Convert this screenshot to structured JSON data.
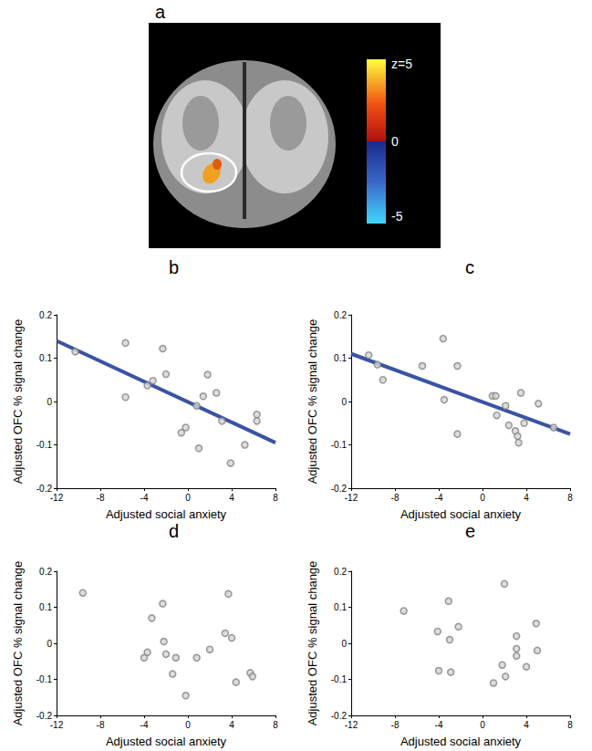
{
  "image_panel": {
    "title": "a",
    "colorbar": {
      "range": [
        -5,
        5
      ],
      "ticks": [
        {
          "value": 5,
          "label": "z=5"
        },
        0,
        -5
      ]
    }
  },
  "chart_data": [
    {
      "type": "scatter",
      "title": "b",
      "x_label": "Adjusted social anxiety",
      "y_label": "Adjusted OFC % signal change",
      "xlim": [
        -12,
        8
      ],
      "xticks": [
        -12,
        -8,
        -4,
        0,
        4,
        8
      ],
      "ylim": [
        -0.2,
        0.2
      ],
      "yticks": [
        -0.2,
        -0.1,
        0,
        0.1,
        0.2
      ],
      "grid": false,
      "series": [
        {
          "type": "scatter",
          "color": "#808080",
          "marker": "circle",
          "x": [
            -10.3,
            -5.7,
            -5.7,
            -3.7,
            -3.2,
            -2.3,
            -2.0,
            -0.6,
            -0.2,
            0.8,
            1.0,
            1.4,
            1.8,
            2.6,
            3.1,
            3.9,
            5.2,
            6.3,
            6.3
          ],
          "values": [
            0.115,
            0.135,
            0.01,
            0.037,
            0.048,
            0.122,
            0.063,
            -0.072,
            -0.06,
            -0.01,
            -0.108,
            0.012,
            0.062,
            0.02,
            -0.045,
            -0.142,
            -0.1,
            -0.03,
            -0.045
          ]
        },
        {
          "type": "line",
          "color": "#3a53a4",
          "x": [
            -12,
            8
          ],
          "values": [
            0.14,
            -0.095
          ]
        }
      ]
    },
    {
      "type": "scatter",
      "title": "c",
      "x_label": "Adjusted social anxiety",
      "y_label": "Adjusted OFC % signal change",
      "xlim": [
        -12,
        8
      ],
      "xticks": [
        -12,
        -8,
        -4,
        0,
        4,
        8
      ],
      "ylim": [
        -0.2,
        0.2
      ],
      "yticks": [
        -0.2,
        -0.1,
        0,
        0.1,
        0.2
      ],
      "grid": false,
      "series": [
        {
          "type": "scatter",
          "color": "#808080",
          "marker": "circle",
          "x": [
            -10.4,
            -9.6,
            -9.1,
            -5.5,
            -3.6,
            -3.5,
            -2.3,
            -2.3,
            0.9,
            1.2,
            1.3,
            2.1,
            2.4,
            3.0,
            3.2,
            3.3,
            3.5,
            3.8,
            5.1,
            6.5
          ],
          "values": [
            0.107,
            0.085,
            0.05,
            0.082,
            0.145,
            0.004,
            0.082,
            -0.075,
            0.013,
            0.013,
            -0.032,
            -0.01,
            -0.055,
            -0.068,
            -0.08,
            -0.095,
            0.02,
            -0.05,
            -0.005,
            -0.06
          ]
        },
        {
          "type": "line",
          "color": "#3a53a4",
          "x": [
            -12,
            8
          ],
          "values": [
            0.11,
            -0.075
          ]
        }
      ]
    },
    {
      "type": "scatter",
      "title": "d",
      "x_label": "Adjusted social anxiety",
      "y_label": "Adjusted OFC % signal change",
      "xlim": [
        -12,
        8
      ],
      "xticks": [
        -12,
        -8,
        -4,
        0,
        4,
        8
      ],
      "ylim": [
        -0.2,
        0.2
      ],
      "yticks": [
        -0.2,
        -0.1,
        0,
        0.1,
        0.2
      ],
      "grid": false,
      "series": [
        {
          "type": "scatter",
          "color": "#808080",
          "marker": "circle",
          "x": [
            -9.6,
            -4.0,
            -3.7,
            -3.3,
            -2.3,
            -2.2,
            -2.0,
            -1.4,
            -1.1,
            -0.2,
            0.8,
            2.0,
            3.4,
            3.7,
            4.0,
            4.4,
            5.7,
            5.9
          ],
          "values": [
            0.14,
            -0.04,
            -0.025,
            0.07,
            0.11,
            0.005,
            -0.03,
            -0.085,
            -0.04,
            -0.145,
            -0.04,
            -0.017,
            0.028,
            0.137,
            0.015,
            -0.108,
            -0.082,
            -0.092
          ]
        }
      ]
    },
    {
      "type": "scatter",
      "title": "e",
      "x_label": "Adjusted social anxiety",
      "y_label": "Adjusted OFC % signal change",
      "xlim": [
        -12,
        8
      ],
      "xticks": [
        -12,
        -8,
        -4,
        0,
        4,
        8
      ],
      "ylim": [
        -0.2,
        0.2
      ],
      "yticks": [
        -0.2,
        -0.1,
        0,
        0.1,
        0.2
      ],
      "grid": false,
      "series": [
        {
          "type": "scatter",
          "color": "#808080",
          "marker": "circle",
          "x": [
            -7.2,
            -4.1,
            -4.0,
            -3.1,
            -3.0,
            -2.9,
            -2.2,
            1.0,
            1.8,
            2.0,
            2.1,
            3.1,
            3.1,
            3.1,
            4.0,
            4.9,
            5.0
          ],
          "values": [
            0.09,
            0.033,
            -0.076,
            0.117,
            0.01,
            -0.08,
            0.046,
            -0.11,
            -0.06,
            0.165,
            -0.092,
            0.02,
            -0.015,
            -0.035,
            -0.065,
            0.055,
            -0.02
          ]
        }
      ]
    }
  ]
}
